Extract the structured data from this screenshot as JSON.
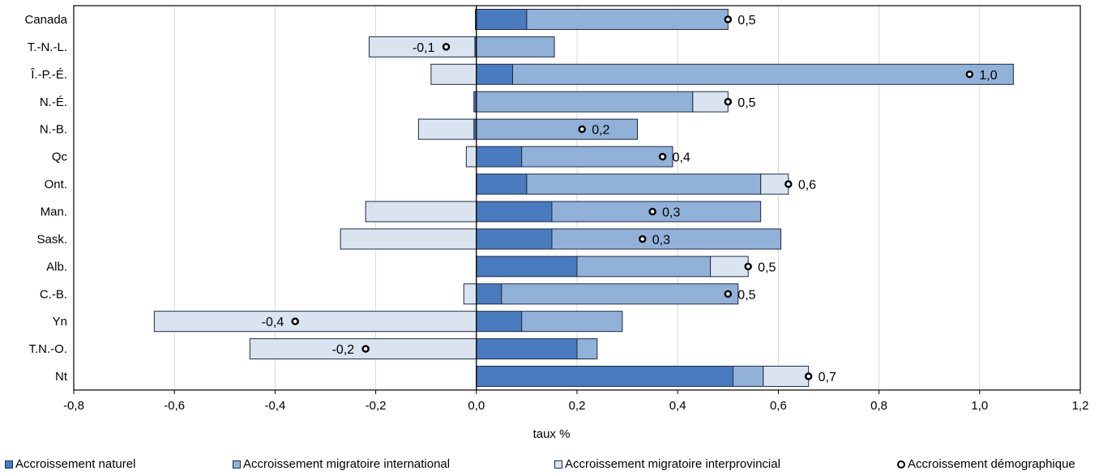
{
  "chart_data": {
    "type": "bar",
    "orientation": "horizontal",
    "stacking": "diverging",
    "categories": [
      "Canada",
      "T.-N.-L.",
      "Î.-P.-É.",
      "N.-É.",
      "N.-B.",
      "Qc",
      "Ont.",
      "Man.",
      "Sask.",
      "Alb.",
      "C.-B.",
      "Yn",
      "T.N.-O.",
      "Nt"
    ],
    "series": [
      {
        "name": "Accroissement naturel",
        "color": "#4a7bbf",
        "values": [
          0.1,
          -0.003,
          0.072,
          -0.005,
          -0.005,
          0.09,
          0.1,
          0.15,
          0.15,
          0.2,
          0.05,
          0.09,
          0.2,
          0.51
        ]
      },
      {
        "name": "Accroissement migratoire international",
        "color": "#92b1d9",
        "values": [
          0.4,
          0.155,
          0.995,
          0.43,
          0.32,
          0.3,
          0.465,
          0.415,
          0.455,
          0.265,
          0.47,
          0.2,
          0.04,
          0.06
        ]
      },
      {
        "name": "Accroissement migratoire interprovincial",
        "color": "#dae4f1",
        "values": [
          -0.002,
          -0.21,
          -0.09,
          0.07,
          -0.11,
          -0.02,
          0.055,
          -0.22,
          -0.27,
          0.075,
          -0.025,
          -0.64,
          -0.45,
          0.09
        ]
      }
    ],
    "total": {
      "name": "Accroissement démographique",
      "values": [
        0.5,
        -0.06,
        0.98,
        0.5,
        0.21,
        0.37,
        0.62,
        0.35,
        0.33,
        0.54,
        0.5,
        -0.36,
        -0.22,
        0.66
      ],
      "labels": [
        "0,5",
        "-0,1",
        "1,0",
        "0,5",
        "0,2",
        "0,4",
        "0,6",
        "0,3",
        "0,3",
        "0,5",
        "0,5",
        "-0,4",
        "-0,2",
        "0,7"
      ]
    },
    "xlim": [
      -0.8,
      1.2
    ],
    "xticks": [
      -0.8,
      -0.6,
      -0.4,
      -0.2,
      0.0,
      0.2,
      0.4,
      0.6,
      0.8,
      1.0,
      1.2
    ],
    "xtick_labels": [
      "-0,8",
      "-0,6",
      "-0,4",
      "-0,2",
      "0,0",
      "0,2",
      "0,4",
      "0,6",
      "0,8",
      "1,0",
      "1,2"
    ],
    "xlabel": "taux %",
    "ylabel": "",
    "title": "",
    "grid": "vertical",
    "legend_position": "bottom"
  },
  "legend": {
    "natural": "Accroissement naturel",
    "international": "Accroissement migratoire international",
    "interprovincial": "Accroissement migratoire interprovincial",
    "total": "Accroissement démographique"
  },
  "colors": {
    "natural": "#4a7bbf",
    "international": "#92b1d9",
    "interprovincial": "#dae4f1",
    "grid": "#d9d9d9",
    "bar_border": "#1f2a44"
  }
}
